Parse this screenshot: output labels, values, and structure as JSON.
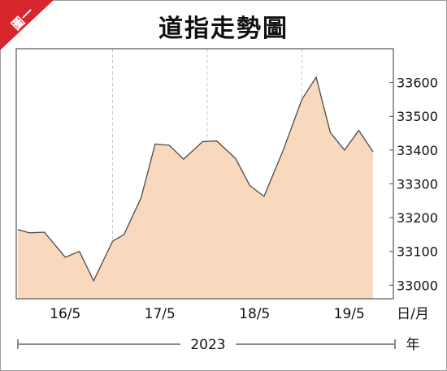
{
  "badge": "圖一",
  "chart_data": {
    "type": "area",
    "title": "道指走勢圖",
    "x_unit_label": "日/月",
    "year_label": "2023",
    "year_unit_label": "年",
    "categories": [
      "16/5",
      "17/5",
      "18/5",
      "19/5"
    ],
    "ylim": [
      32960,
      33700
    ],
    "yticks": [
      33000,
      33100,
      33200,
      33300,
      33400,
      33500,
      33600
    ],
    "grid": "vertical-dashed",
    "colors": {
      "fill": "#f9d9bd",
      "line": "#4a4a4a"
    },
    "x": [
      0.0,
      0.12,
      0.28,
      0.5,
      0.65,
      0.8,
      1.0,
      1.12,
      1.3,
      1.45,
      1.6,
      1.75,
      1.95,
      2.1,
      2.3,
      2.45,
      2.6,
      2.8,
      3.0,
      3.15,
      3.3,
      3.45,
      3.6,
      3.75
    ],
    "values": [
      33165,
      33155,
      33157,
      33083,
      33100,
      33013,
      33130,
      33150,
      33258,
      33418,
      33414,
      33373,
      33425,
      33427,
      33375,
      33295,
      33263,
      33398,
      33550,
      33616,
      33452,
      33400,
      33458,
      33395
    ]
  }
}
